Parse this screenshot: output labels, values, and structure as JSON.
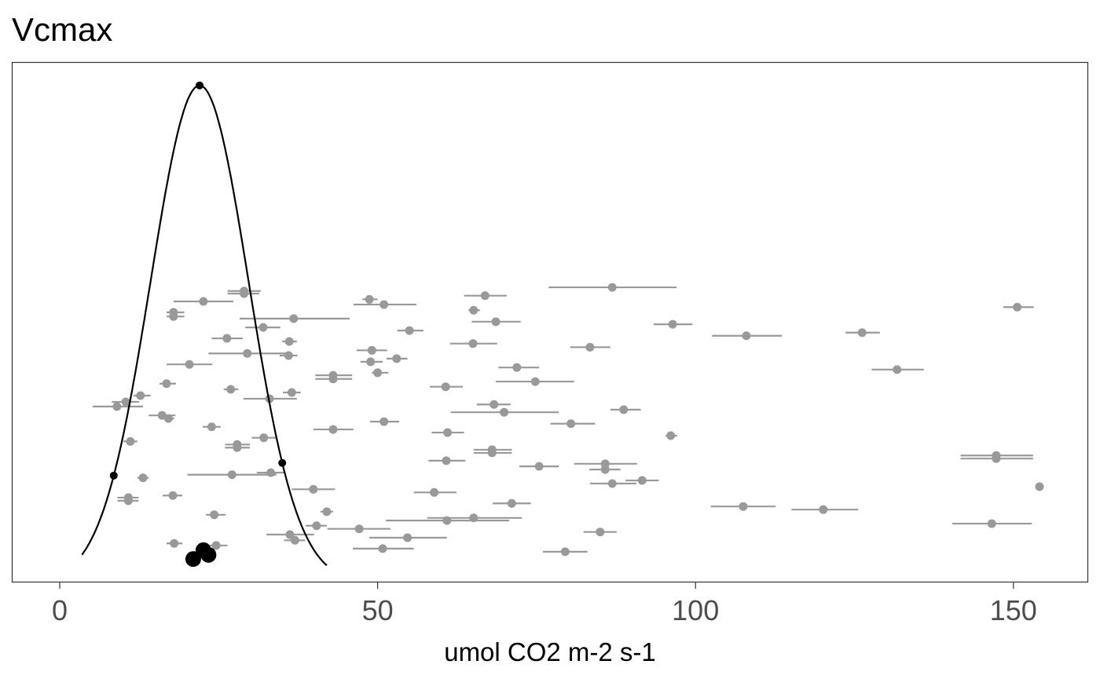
{
  "chart_data": {
    "type": "scatter",
    "title": "Vcmax",
    "xlabel": "umol CO2 m-2 s-1",
    "ylabel": "",
    "xlim": [
      -7.5,
      162
    ],
    "ylim": [
      0,
      100
    ],
    "xticks": [
      0,
      50,
      100,
      150
    ],
    "xtick_labels": [
      "0",
      "50",
      "100",
      "150"
    ],
    "grid": false,
    "colors": {
      "points": "#999999",
      "prior": "#000000",
      "axis_text": "#4d4d4d"
    },
    "prior_curve": {
      "distribution": "normal",
      "mean": 22.0,
      "sd": 7.7,
      "peak": 95.5,
      "xmin": 3.5,
      "xmax": 42.0,
      "markers_x": [
        8.5,
        22.0,
        35.0
      ]
    },
    "posterior_points": [
      {
        "x": 21.0,
        "y": 4.5
      },
      {
        "x": 22.6,
        "y": 6.2
      },
      {
        "x": 23.4,
        "y": 5.3
      }
    ],
    "series": [
      {
        "name": "observations",
        "points": [
          [
            86.9,
            76.9,
            97.0,
            56.7
          ],
          [
            66.9,
            63.6,
            70.3,
            55.1
          ],
          [
            48.7,
            47.6,
            50.0,
            54.4
          ],
          [
            51.0,
            46.2,
            56.1,
            53.4
          ],
          [
            29.0,
            26.4,
            31.6,
            56.0
          ],
          [
            29.0,
            26.4,
            31.4,
            55.5
          ],
          [
            22.6,
            17.9,
            27.3,
            54.0
          ],
          [
            17.9,
            16.8,
            19.6,
            51.9
          ],
          [
            17.9,
            16.8,
            19.6,
            51.1
          ],
          [
            150.6,
            148.4,
            153.2,
            52.9
          ],
          [
            65.1,
            64.3,
            66.1,
            52.3
          ],
          [
            36.8,
            28.3,
            45.6,
            50.7
          ],
          [
            68.6,
            64.8,
            72.5,
            50.1
          ],
          [
            96.4,
            93.4,
            99.5,
            49.6
          ],
          [
            32.0,
            29.2,
            34.7,
            49.0
          ],
          [
            55.0,
            53.1,
            57.2,
            48.4
          ],
          [
            108.0,
            102.6,
            113.6,
            47.4
          ],
          [
            126.2,
            123.6,
            129.0,
            48.0
          ],
          [
            26.3,
            23.9,
            28.8,
            46.9
          ],
          [
            36.1,
            35.0,
            37.3,
            46.3
          ],
          [
            65.0,
            61.4,
            68.8,
            45.9
          ],
          [
            83.4,
            80.3,
            86.6,
            45.2
          ],
          [
            49.1,
            46.7,
            51.5,
            44.6
          ],
          [
            29.5,
            23.4,
            35.7,
            44.0
          ],
          [
            36.0,
            34.6,
            37.4,
            43.6
          ],
          [
            53.0,
            51.4,
            54.7,
            43.0
          ],
          [
            48.9,
            47.3,
            50.8,
            42.4
          ],
          [
            20.4,
            16.8,
            24.0,
            41.9
          ],
          [
            71.9,
            69.0,
            75.4,
            41.3
          ],
          [
            131.7,
            127.7,
            135.9,
            40.9
          ],
          [
            50.0,
            49.1,
            51.7,
            40.3
          ],
          [
            43.0,
            40.2,
            46.0,
            39.8
          ],
          [
            43.0,
            40.2,
            46.0,
            39.1
          ],
          [
            74.8,
            68.6,
            80.9,
            38.6
          ],
          [
            16.8,
            15.7,
            18.3,
            38.2
          ],
          [
            60.7,
            58.2,
            63.4,
            37.6
          ],
          [
            26.9,
            25.8,
            28.1,
            37.1
          ],
          [
            36.5,
            35.1,
            37.9,
            36.5
          ],
          [
            12.7,
            11.6,
            14.3,
            35.9
          ],
          [
            33.0,
            28.9,
            37.3,
            35.3
          ],
          [
            10.4,
            8.2,
            12.5,
            34.7
          ],
          [
            9.0,
            5.2,
            13.1,
            33.8
          ],
          [
            68.3,
            65.6,
            70.9,
            34.2
          ],
          [
            88.7,
            86.6,
            91.4,
            33.2
          ],
          [
            69.9,
            61.5,
            78.5,
            32.7
          ],
          [
            16.1,
            14.0,
            18.2,
            32.1
          ],
          [
            17.1,
            16.1,
            18.0,
            31.5
          ],
          [
            51.0,
            48.8,
            53.4,
            30.9
          ],
          [
            80.4,
            77.2,
            84.2,
            30.5
          ],
          [
            23.9,
            22.5,
            25.3,
            29.9
          ],
          [
            43.0,
            39.9,
            46.2,
            29.4
          ],
          [
            61.0,
            58.5,
            63.6,
            28.8
          ],
          [
            96.1,
            95.3,
            97.1,
            28.2
          ],
          [
            11.1,
            10.0,
            12.2,
            27.1
          ],
          [
            32.1,
            30.2,
            34.1,
            27.8
          ],
          [
            27.9,
            26.0,
            29.9,
            26.5
          ],
          [
            27.9,
            26.0,
            29.9,
            25.9
          ],
          [
            68.0,
            65.1,
            71.1,
            25.5
          ],
          [
            68.0,
            65.1,
            71.1,
            24.9
          ],
          [
            147.3,
            141.7,
            153.1,
            24.4
          ],
          [
            147.3,
            141.7,
            153.1,
            23.8
          ],
          [
            60.8,
            58.0,
            63.8,
            23.4
          ],
          [
            85.8,
            80.9,
            90.8,
            22.8
          ],
          [
            75.4,
            72.3,
            78.5,
            22.3
          ],
          [
            85.8,
            83.3,
            88.2,
            21.7
          ],
          [
            27.1,
            20.1,
            34.1,
            20.7
          ],
          [
            33.2,
            31.0,
            35.3,
            21.1
          ],
          [
            13.1,
            12.2,
            14.0,
            20.1
          ],
          [
            91.6,
            89.0,
            94.2,
            19.6
          ],
          [
            86.9,
            83.4,
            90.7,
            19.0
          ],
          [
            154.1,
            154.1,
            154.1,
            18.4
          ],
          [
            39.9,
            36.5,
            43.3,
            17.9
          ],
          [
            58.9,
            55.7,
            62.4,
            17.3
          ],
          [
            17.8,
            16.2,
            19.3,
            16.7
          ],
          [
            10.8,
            9.1,
            12.4,
            16.3
          ],
          [
            10.8,
            9.1,
            12.4,
            15.7
          ],
          [
            71.1,
            68.1,
            74.1,
            15.2
          ],
          [
            107.5,
            102.4,
            112.6,
            14.6
          ],
          [
            120.1,
            115.1,
            125.6,
            14.0
          ],
          [
            42.0,
            41.0,
            43.0,
            13.6
          ],
          [
            24.3,
            23.0,
            26.1,
            13.0
          ],
          [
            65.1,
            57.8,
            72.7,
            12.4
          ],
          [
            60.9,
            51.3,
            70.7,
            11.9
          ],
          [
            146.6,
            140.4,
            152.9,
            11.3
          ],
          [
            40.4,
            38.7,
            42.0,
            10.9
          ],
          [
            47.1,
            42.1,
            52.0,
            10.3
          ],
          [
            85.0,
            82.4,
            87.6,
            9.7
          ],
          [
            36.2,
            32.5,
            40.0,
            9.2
          ],
          [
            54.7,
            48.7,
            60.9,
            8.6
          ],
          [
            37.0,
            35.3,
            38.6,
            8.1
          ],
          [
            18.0,
            16.8,
            19.3,
            7.5
          ],
          [
            24.6,
            23.5,
            26.4,
            7.1
          ],
          [
            50.8,
            46.1,
            55.7,
            6.5
          ],
          [
            79.5,
            76.0,
            83.0,
            5.9
          ]
        ],
        "point_format": [
          "x",
          "x_lower",
          "x_upper",
          "y"
        ]
      }
    ]
  }
}
